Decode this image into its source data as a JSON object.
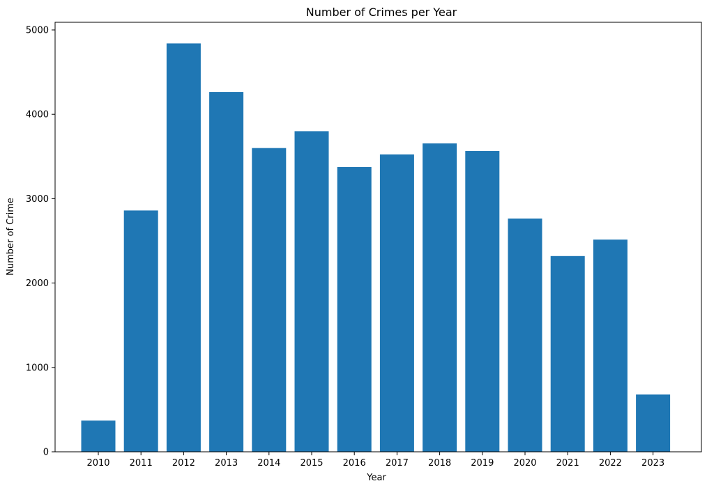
{
  "chart_data": {
    "type": "bar",
    "title": "Number of Crimes per Year",
    "xlabel": "Year",
    "ylabel": "Number of Crime",
    "categories": [
      "2010",
      "2011",
      "2012",
      "2013",
      "2014",
      "2015",
      "2016",
      "2017",
      "2018",
      "2019",
      "2020",
      "2021",
      "2022",
      "2023"
    ],
    "values": [
      370,
      2860,
      4840,
      4265,
      3600,
      3800,
      3375,
      3525,
      3655,
      3565,
      2765,
      2320,
      2515,
      680
    ],
    "ylim": [
      0,
      5200
    ],
    "yticks": [
      0,
      1000,
      2000,
      3000,
      4000,
      5000
    ],
    "bar_color": "#1f77b4",
    "grid": false,
    "legend": false
  }
}
